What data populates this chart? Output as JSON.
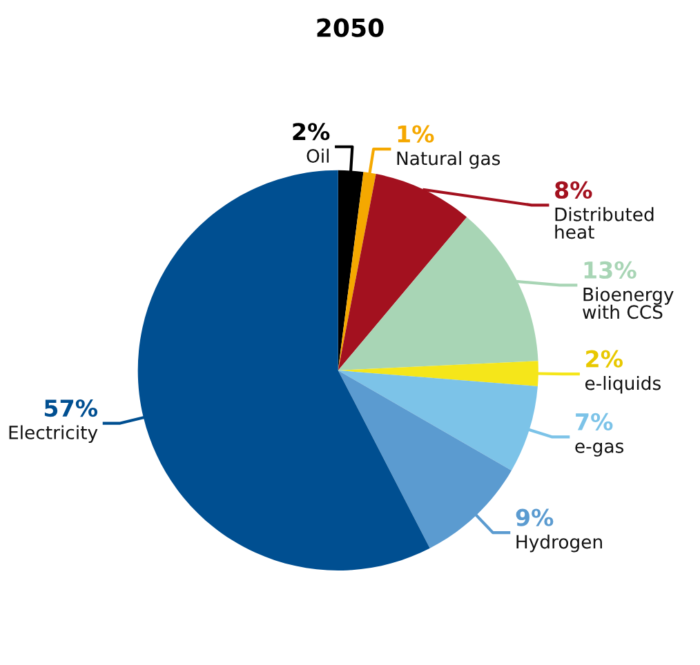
{
  "chart_data": {
    "type": "pie",
    "title": "2050",
    "categories": [
      "Oil",
      "Natural gas",
      "Distributed\nheat",
      "Bioenergy\nwith CCS",
      "e-liquids",
      "e-gas",
      "Hydrogen",
      "Electricity"
    ],
    "values": [
      2,
      1,
      8,
      13,
      2,
      7,
      9,
      57
    ],
    "value_labels": [
      "2%",
      "1%",
      "8%",
      "13%",
      "2%",
      "7%",
      "9%",
      "57%"
    ],
    "colors": [
      "#000000",
      "#f5a800",
      "#a3111f",
      "#a8d5b5",
      "#f5e61a",
      "#7cc3e8",
      "#5b9bd0",
      "#004f91"
    ]
  }
}
